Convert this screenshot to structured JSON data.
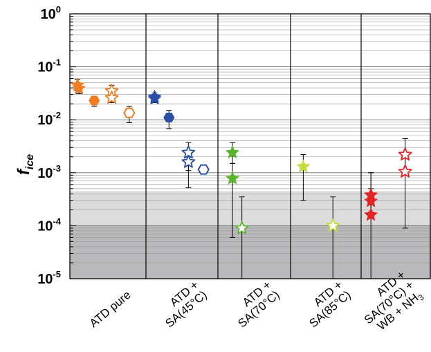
{
  "chart_data": {
    "type": "scatter",
    "title": "",
    "ylabel": "f",
    "ylabel_subscript": "ice",
    "yscale": "log",
    "ylim": [
      1e-05,
      1
    ],
    "yticks": [
      {
        "base": "10",
        "exp": "0"
      },
      {
        "base": "10",
        "exp": "-1"
      },
      {
        "base": "10",
        "exp": "-2"
      },
      {
        "base": "10",
        "exp": "-3"
      },
      {
        "base": "10",
        "exp": "-4"
      },
      {
        "base": "10",
        "exp": "-5"
      }
    ],
    "grid": true,
    "shaded_bands": [
      {
        "ymin": 1e-05,
        "ymax": 0.0001,
        "color": "#b9b9bb"
      },
      {
        "ymin": 0.0001,
        "ymax": 0.00045,
        "color": "#dcdcdd"
      }
    ],
    "categories": [
      {
        "lines": [
          "ATD pure"
        ]
      },
      {
        "lines": [
          "ATD +",
          "SA(45°C)"
        ]
      },
      {
        "lines": [
          "ATD +",
          "SA(70°C)"
        ]
      },
      {
        "lines": [
          "ATD +",
          "SA(85°C)"
        ]
      },
      {
        "lines": [
          "ATD +",
          "SA(70°C) +",
          "WB + NH",
          "3"
        ]
      }
    ],
    "colors": {
      "atd_pure": "#ef7d22",
      "sa45": "#2a4ea6",
      "sa70": "#5ab52e",
      "sa85": "#c6dc3c",
      "sa70_wb_nh3": "#e62222"
    },
    "points": [
      {
        "group": 0,
        "x": 0.1,
        "y": 0.045,
        "yerr_low": 0.036,
        "yerr_high": 0.058,
        "marker": "star",
        "filled": true,
        "color": "#ef7d22"
      },
      {
        "group": 0,
        "x": 0.12,
        "y": 0.039,
        "yerr_low": 0.031,
        "yerr_high": 0.049,
        "marker": "star",
        "filled": true,
        "color": "#ef7d22"
      },
      {
        "group": 0,
        "x": 0.32,
        "y": 0.023,
        "yerr_low": 0.018,
        "yerr_high": 0.028,
        "marker": "hexagon",
        "filled": true,
        "color": "#ef7d22"
      },
      {
        "group": 0,
        "x": 0.55,
        "y": 0.035,
        "yerr_low": 0.028,
        "yerr_high": 0.045,
        "marker": "star",
        "filled": false,
        "color": "#ef7d22"
      },
      {
        "group": 0,
        "x": 0.55,
        "y": 0.026,
        "yerr_low": 0.021,
        "yerr_high": 0.033,
        "marker": "star",
        "filled": false,
        "color": "#ef7d22"
      },
      {
        "group": 0,
        "x": 0.78,
        "y": 0.0135,
        "yerr_low": 0.0088,
        "yerr_high": 0.018,
        "marker": "hexagon",
        "filled": false,
        "color": "#ef7d22"
      },
      {
        "group": 1,
        "x": 0.12,
        "y": 0.027,
        "yerr_low": 0.022,
        "yerr_high": 0.032,
        "marker": "star",
        "filled": true,
        "color": "#2a4ea6"
      },
      {
        "group": 1,
        "x": 0.12,
        "y": 0.025,
        "yerr_low": 0.021,
        "yerr_high": 0.03,
        "marker": "star",
        "filled": true,
        "color": "#2a4ea6"
      },
      {
        "group": 1,
        "x": 0.32,
        "y": 0.011,
        "yerr_low": 0.0068,
        "yerr_high": 0.015,
        "marker": "hexagon",
        "filled": true,
        "color": "#2a4ea6"
      },
      {
        "group": 1,
        "x": 0.59,
        "y": 0.0024,
        "yerr_low": 0.0011,
        "yerr_high": 0.0037,
        "marker": "star",
        "filled": false,
        "color": "#2a4ea6"
      },
      {
        "group": 1,
        "x": 0.59,
        "y": 0.0016,
        "yerr_low": 0.00052,
        "yerr_high": 0.0026,
        "marker": "star",
        "filled": false,
        "color": "#2a4ea6"
      },
      {
        "group": 1,
        "x": 0.8,
        "y": 0.00115,
        "yerr_low": null,
        "yerr_high": null,
        "marker": "hexagon",
        "filled": false,
        "color": "#2a4ea6"
      },
      {
        "group": 2,
        "x": 0.2,
        "y": 0.0024,
        "yerr_low": 0.0015,
        "yerr_high": 0.0037,
        "marker": "star",
        "filled": true,
        "color": "#5ab52e"
      },
      {
        "group": 2,
        "x": 0.2,
        "y": 0.00078,
        "yerr_low": 6e-05,
        "yerr_high": 0.0015,
        "marker": "star",
        "filled": true,
        "color": "#5ab52e"
      },
      {
        "group": 2,
        "x": 0.33,
        "y": 9e-05,
        "yerr_low": 1e-05,
        "yerr_high": 0.00035,
        "marker": "star",
        "filled": false,
        "color": "#5ab52e"
      },
      {
        "group": 3,
        "x": 0.18,
        "y": 0.0013,
        "yerr_low": 0.0003,
        "yerr_high": 0.0022,
        "marker": "star",
        "filled": true,
        "color": "#c6dc3c"
      },
      {
        "group": 3,
        "x": 0.6,
        "y": 0.0001,
        "yerr_low": 1e-05,
        "yerr_high": 0.00035,
        "marker": "star",
        "filled": false,
        "color": "#c6dc3c"
      },
      {
        "group": 4,
        "x": 0.14,
        "y": 0.00038,
        "yerr_low": 0.00025,
        "yerr_high": 0.001,
        "marker": "star",
        "filled": true,
        "color": "#e62222"
      },
      {
        "group": 4,
        "x": 0.14,
        "y": 0.00029,
        "yerr_low": 0.00018,
        "yerr_high": 0.0005,
        "marker": "star",
        "filled": true,
        "color": "#e62222"
      },
      {
        "group": 4,
        "x": 0.14,
        "y": 0.00016,
        "yerr_low": 1e-05,
        "yerr_high": 0.001,
        "marker": "star",
        "filled": true,
        "color": "#e62222"
      },
      {
        "group": 4,
        "x": 0.63,
        "y": 0.0022,
        "yerr_low": 0.00105,
        "yerr_high": 0.0044,
        "marker": "star",
        "filled": false,
        "color": "#e62222"
      },
      {
        "group": 4,
        "x": 0.63,
        "y": 0.00105,
        "yerr_low": 9e-05,
        "yerr_high": 0.0021,
        "marker": "star",
        "filled": false,
        "color": "#e62222"
      }
    ]
  }
}
